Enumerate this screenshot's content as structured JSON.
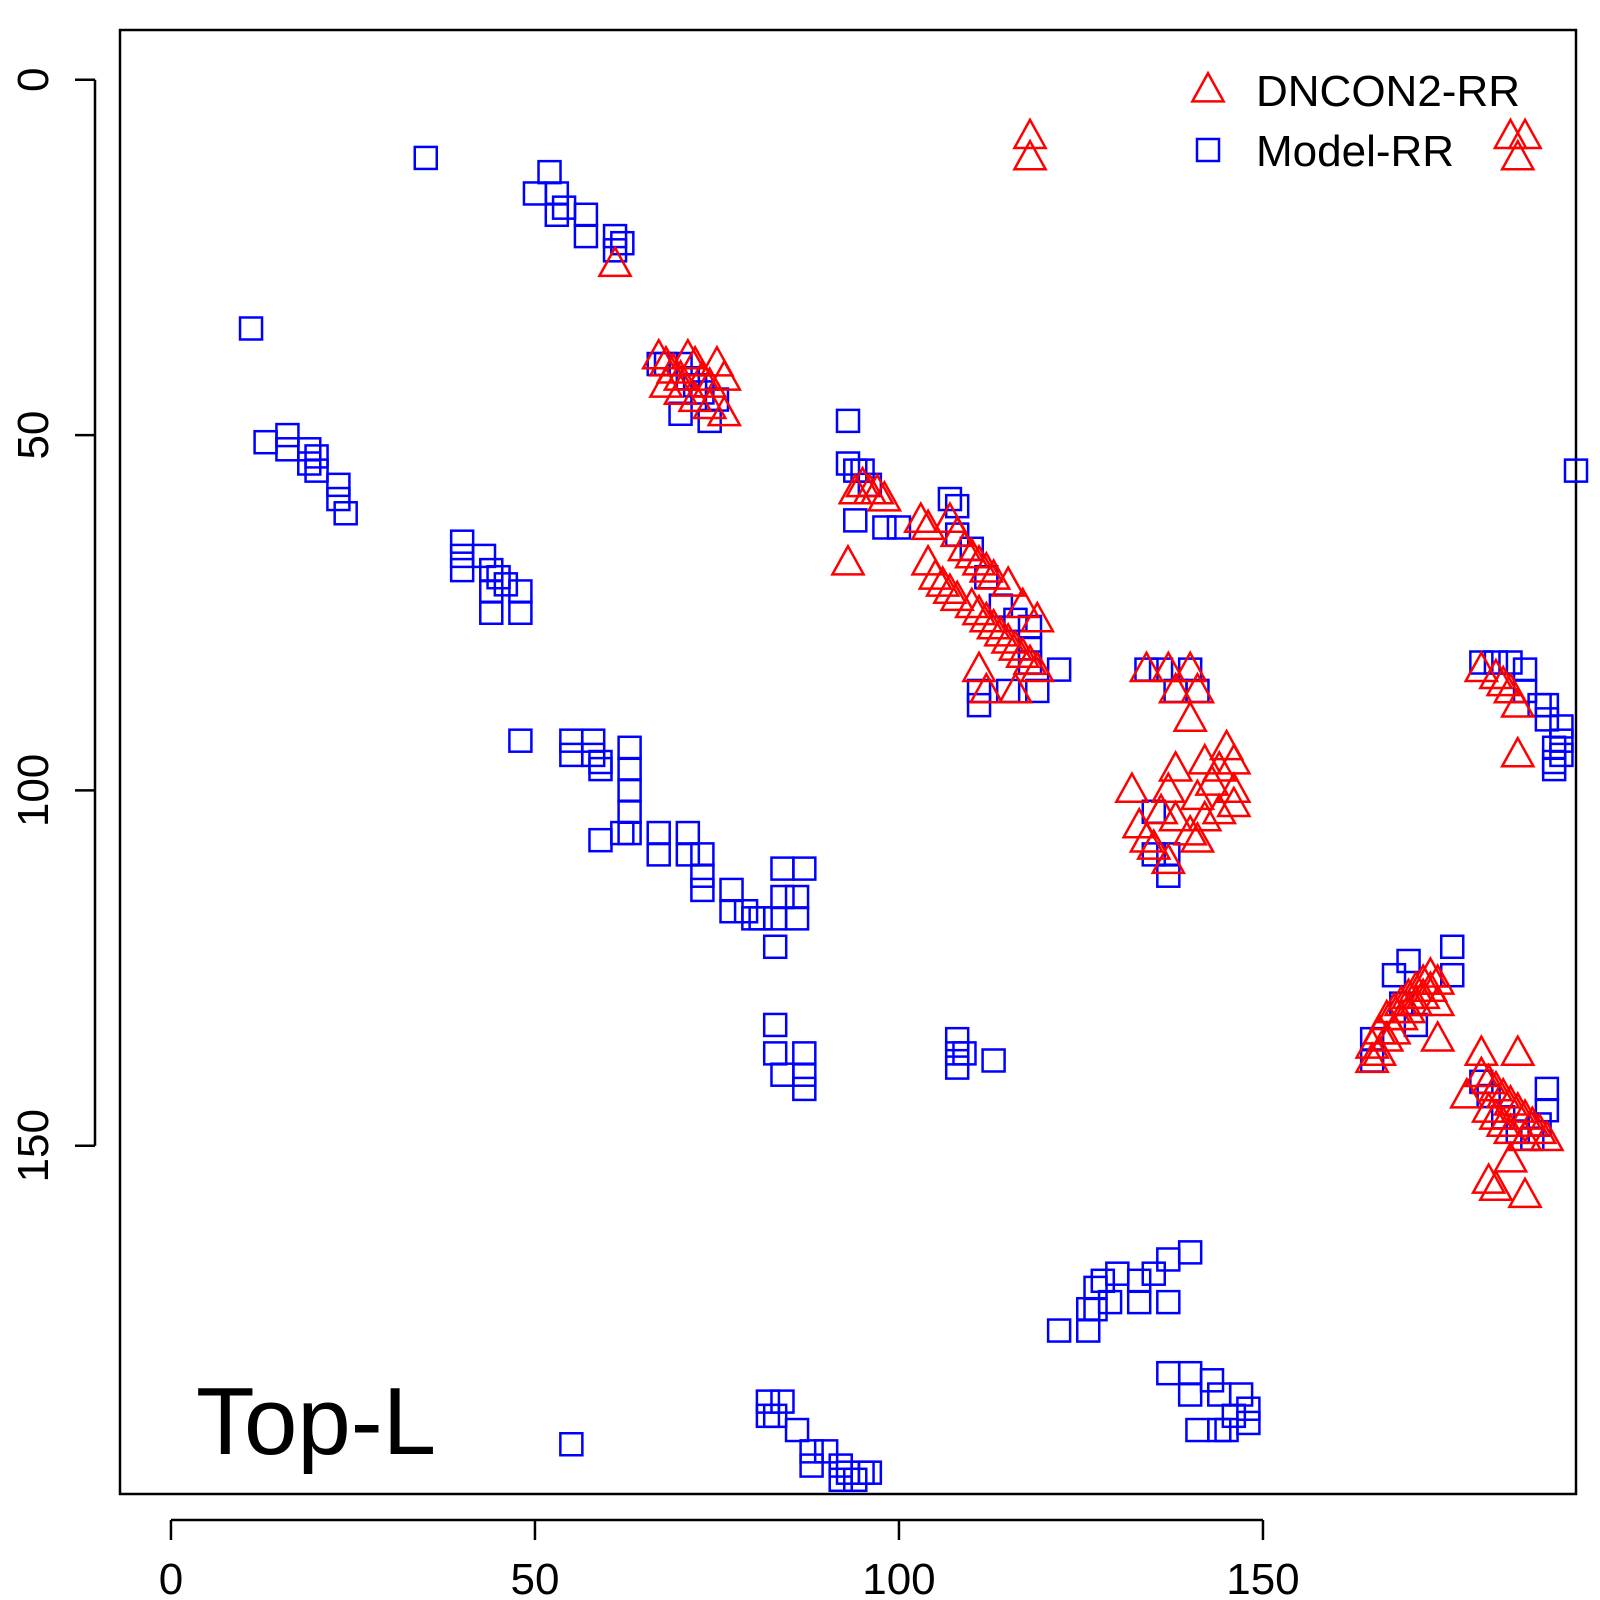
{
  "chart_data": {
    "type": "scatter",
    "title": "",
    "xlabel": "",
    "ylabel": "",
    "annotation": "Top-L",
    "xlim": [
      -7,
      193
    ],
    "ylim": [
      -7,
      199
    ],
    "y_reversed": true,
    "x_ticks": [
      0,
      50,
      100,
      150
    ],
    "y_ticks": [
      0,
      50,
      100,
      150
    ],
    "grid": false,
    "legend_position": "top-right",
    "series": [
      {
        "name": "DNCON2-RR",
        "color": "#ff0000",
        "marker": "triangle",
        "points": [
          [
            118,
            8
          ],
          [
            118,
            11
          ],
          [
            61,
            26
          ],
          [
            186,
            8
          ],
          [
            184,
            8
          ],
          [
            185,
            11
          ],
          [
            67,
            39
          ],
          [
            68,
            40
          ],
          [
            69,
            41
          ],
          [
            70,
            42
          ],
          [
            71,
            39
          ],
          [
            72,
            40
          ],
          [
            73,
            42
          ],
          [
            74,
            43
          ],
          [
            75,
            40
          ],
          [
            76,
            42
          ],
          [
            72,
            45
          ],
          [
            74,
            46
          ],
          [
            76,
            47
          ],
          [
            70,
            44
          ],
          [
            68,
            43
          ],
          [
            94,
            58
          ],
          [
            95,
            57
          ],
          [
            96,
            58
          ],
          [
            97,
            58
          ],
          [
            98,
            59
          ],
          [
            93,
            68
          ],
          [
            103,
            62
          ],
          [
            104,
            63
          ],
          [
            107,
            62
          ],
          [
            108,
            64
          ],
          [
            109,
            66
          ],
          [
            110,
            67
          ],
          [
            111,
            68
          ],
          [
            112,
            69
          ],
          [
            113,
            70
          ],
          [
            104,
            68
          ],
          [
            105,
            70
          ],
          [
            106,
            71
          ],
          [
            107,
            72
          ],
          [
            108,
            73
          ],
          [
            110,
            74
          ],
          [
            111,
            75
          ],
          [
            112,
            76
          ],
          [
            113,
            77
          ],
          [
            114,
            78
          ],
          [
            115,
            79
          ],
          [
            116,
            80
          ],
          [
            117,
            81
          ],
          [
            118,
            82
          ],
          [
            119,
            83
          ],
          [
            115,
            71
          ],
          [
            117,
            74
          ],
          [
            119,
            76
          ],
          [
            111,
            83
          ],
          [
            112,
            86
          ],
          [
            116,
            86
          ],
          [
            134,
            83
          ],
          [
            137,
            83
          ],
          [
            140,
            83
          ],
          [
            138,
            86
          ],
          [
            141,
            86
          ],
          [
            140,
            90
          ],
          [
            138,
            97
          ],
          [
            142,
            96
          ],
          [
            144,
            97
          ],
          [
            146,
            96
          ],
          [
            145,
            94
          ],
          [
            143,
            99
          ],
          [
            146,
            100
          ],
          [
            141,
            101
          ],
          [
            137,
            100
          ],
          [
            132,
            100
          ],
          [
            133,
            105
          ],
          [
            134,
            107
          ],
          [
            135,
            108
          ],
          [
            136,
            103
          ],
          [
            138,
            104
          ],
          [
            140,
            106
          ],
          [
            142,
            104
          ],
          [
            144,
            103
          ],
          [
            137,
            110
          ],
          [
            141,
            107
          ],
          [
            146,
            102
          ],
          [
            180,
            83
          ],
          [
            182,
            84
          ],
          [
            183,
            85
          ],
          [
            184,
            86
          ],
          [
            185,
            88
          ],
          [
            185,
            95
          ],
          [
            165,
            138
          ],
          [
            166,
            137
          ],
          [
            167,
            135
          ],
          [
            168,
            134
          ],
          [
            169,
            132
          ],
          [
            170,
            131
          ],
          [
            171,
            130
          ],
          [
            172,
            129
          ],
          [
            173,
            128
          ],
          [
            166,
            134
          ],
          [
            167,
            132
          ],
          [
            168,
            131
          ],
          [
            169,
            130
          ],
          [
            170,
            129
          ],
          [
            171,
            128
          ],
          [
            172,
            127
          ],
          [
            173,
            126
          ],
          [
            174,
            127
          ],
          [
            165,
            136
          ],
          [
            174,
            135
          ],
          [
            174,
            130
          ],
          [
            180,
            140
          ],
          [
            181,
            141
          ],
          [
            182,
            142
          ],
          [
            183,
            143
          ],
          [
            184,
            144
          ],
          [
            185,
            145
          ],
          [
            186,
            146
          ],
          [
            187,
            147
          ],
          [
            188,
            148
          ],
          [
            189,
            149
          ],
          [
            181,
            145
          ],
          [
            182,
            146
          ],
          [
            183,
            147
          ],
          [
            184,
            148
          ],
          [
            186,
            149
          ],
          [
            178,
            143
          ],
          [
            180,
            137
          ],
          [
            185,
            137
          ],
          [
            184,
            152
          ],
          [
            181,
            155
          ],
          [
            182,
            156
          ],
          [
            186,
            157
          ]
        ]
      },
      {
        "name": "Model-RR",
        "color": "#0000ff",
        "marker": "square",
        "points": [
          [
            35,
            11
          ],
          [
            52,
            13
          ],
          [
            50,
            16
          ],
          [
            53,
            16
          ],
          [
            54,
            18
          ],
          [
            53,
            19
          ],
          [
            57,
            19
          ],
          [
            57,
            22
          ],
          [
            61,
            22
          ],
          [
            62,
            23
          ],
          [
            61,
            24
          ],
          [
            11,
            35
          ],
          [
            13,
            51
          ],
          [
            16,
            50
          ],
          [
            16,
            52
          ],
          [
            19,
            52
          ],
          [
            20,
            53
          ],
          [
            19,
            54
          ],
          [
            20,
            55
          ],
          [
            23,
            57
          ],
          [
            23,
            59
          ],
          [
            24,
            61
          ],
          [
            40,
            65
          ],
          [
            40,
            67
          ],
          [
            40,
            69
          ],
          [
            43,
            67
          ],
          [
            44,
            69
          ],
          [
            45,
            70
          ],
          [
            46,
            71
          ],
          [
            44,
            72
          ],
          [
            48,
            72
          ],
          [
            48,
            75
          ],
          [
            44,
            75
          ],
          [
            67,
            40
          ],
          [
            68,
            40
          ],
          [
            70,
            40
          ],
          [
            71,
            42
          ],
          [
            72,
            43
          ],
          [
            73,
            44
          ],
          [
            75,
            45
          ],
          [
            74,
            48
          ],
          [
            70,
            47
          ],
          [
            48,
            93
          ],
          [
            55,
            93
          ],
          [
            55,
            95
          ],
          [
            58,
            93
          ],
          [
            58,
            95
          ],
          [
            59,
            96
          ],
          [
            59,
            97
          ],
          [
            63,
            94
          ],
          [
            63,
            97
          ],
          [
            63,
            100
          ],
          [
            63,
            103
          ],
          [
            63,
            106
          ],
          [
            59,
            107
          ],
          [
            62,
            106
          ],
          [
            67,
            106
          ],
          [
            71,
            106
          ],
          [
            71,
            109
          ],
          [
            67,
            109
          ],
          [
            73,
            109
          ],
          [
            73,
            112
          ],
          [
            73,
            114
          ],
          [
            77,
            114
          ],
          [
            77,
            117
          ],
          [
            79,
            117
          ],
          [
            80,
            118
          ],
          [
            81,
            118
          ],
          [
            83,
            118
          ],
          [
            84,
            115
          ],
          [
            86,
            115
          ],
          [
            86,
            118
          ],
          [
            87,
            111
          ],
          [
            84,
            111
          ],
          [
            83,
            122
          ],
          [
            83,
            133
          ],
          [
            83,
            137
          ],
          [
            87,
            137
          ],
          [
            84,
            140
          ],
          [
            87,
            140
          ],
          [
            87,
            142
          ],
          [
            93,
            48
          ],
          [
            93,
            54
          ],
          [
            94,
            55
          ],
          [
            95,
            55
          ],
          [
            96,
            57
          ],
          [
            94,
            62
          ],
          [
            98,
            63
          ],
          [
            100,
            63
          ],
          [
            107,
            59
          ],
          [
            108,
            60
          ],
          [
            108,
            64
          ],
          [
            110,
            66
          ],
          [
            112,
            70
          ],
          [
            114,
            74
          ],
          [
            116,
            76
          ],
          [
            118,
            77
          ],
          [
            118,
            80
          ],
          [
            118,
            82
          ],
          [
            122,
            83
          ],
          [
            119,
            86
          ],
          [
            115,
            86
          ],
          [
            111,
            86
          ],
          [
            111,
            88
          ],
          [
            108,
            135
          ],
          [
            108,
            137
          ],
          [
            109,
            137
          ],
          [
            113,
            138
          ],
          [
            108,
            139
          ],
          [
            134,
            83
          ],
          [
            136,
            83
          ],
          [
            140,
            83
          ],
          [
            138,
            86
          ],
          [
            141,
            86
          ],
          [
            135,
            103
          ],
          [
            135,
            109
          ],
          [
            137,
            109
          ],
          [
            137,
            112
          ],
          [
            180,
            82
          ],
          [
            182,
            82
          ],
          [
            184,
            82
          ],
          [
            186,
            83
          ],
          [
            186,
            86
          ],
          [
            188,
            88
          ],
          [
            189,
            88
          ],
          [
            189,
            90
          ],
          [
            191,
            91
          ],
          [
            191,
            93
          ],
          [
            190,
            94
          ],
          [
            191,
            95
          ],
          [
            190,
            96
          ],
          [
            190,
            97
          ],
          [
            193,
            55
          ],
          [
            176,
            122
          ],
          [
            176,
            126
          ],
          [
            170,
            124
          ],
          [
            168,
            126
          ],
          [
            165,
            135
          ],
          [
            165,
            138
          ],
          [
            169,
            130
          ],
          [
            171,
            133
          ],
          [
            180,
            141
          ],
          [
            181,
            143
          ],
          [
            183,
            146
          ],
          [
            185,
            148
          ],
          [
            187,
            149
          ],
          [
            188,
            147
          ],
          [
            189,
            145
          ],
          [
            189,
            142
          ],
          [
            55,
            192
          ],
          [
            82,
            186
          ],
          [
            83,
            188
          ],
          [
            84,
            186
          ],
          [
            82,
            188
          ],
          [
            86,
            190
          ],
          [
            88,
            193
          ],
          [
            88,
            195
          ],
          [
            90,
            193
          ],
          [
            92,
            195
          ],
          [
            93,
            196
          ],
          [
            94,
            197
          ],
          [
            95,
            196
          ],
          [
            96,
            196
          ],
          [
            92,
            197
          ],
          [
            122,
            176
          ],
          [
            126,
            176
          ],
          [
            126,
            173
          ],
          [
            127,
            170
          ],
          [
            128,
            169
          ],
          [
            130,
            168
          ],
          [
            133,
            169
          ],
          [
            135,
            168
          ],
          [
            137,
            166
          ],
          [
            140,
            165
          ],
          [
            137,
            172
          ],
          [
            133,
            172
          ],
          [
            129,
            172
          ],
          [
            127,
            173
          ],
          [
            137,
            182
          ],
          [
            140,
            182
          ],
          [
            140,
            185
          ],
          [
            143,
            183
          ],
          [
            144,
            185
          ],
          [
            147,
            185
          ],
          [
            148,
            187
          ],
          [
            146,
            188
          ],
          [
            148,
            189
          ],
          [
            145,
            190
          ],
          [
            141,
            190
          ],
          [
            144,
            190
          ]
        ]
      }
    ]
  }
}
